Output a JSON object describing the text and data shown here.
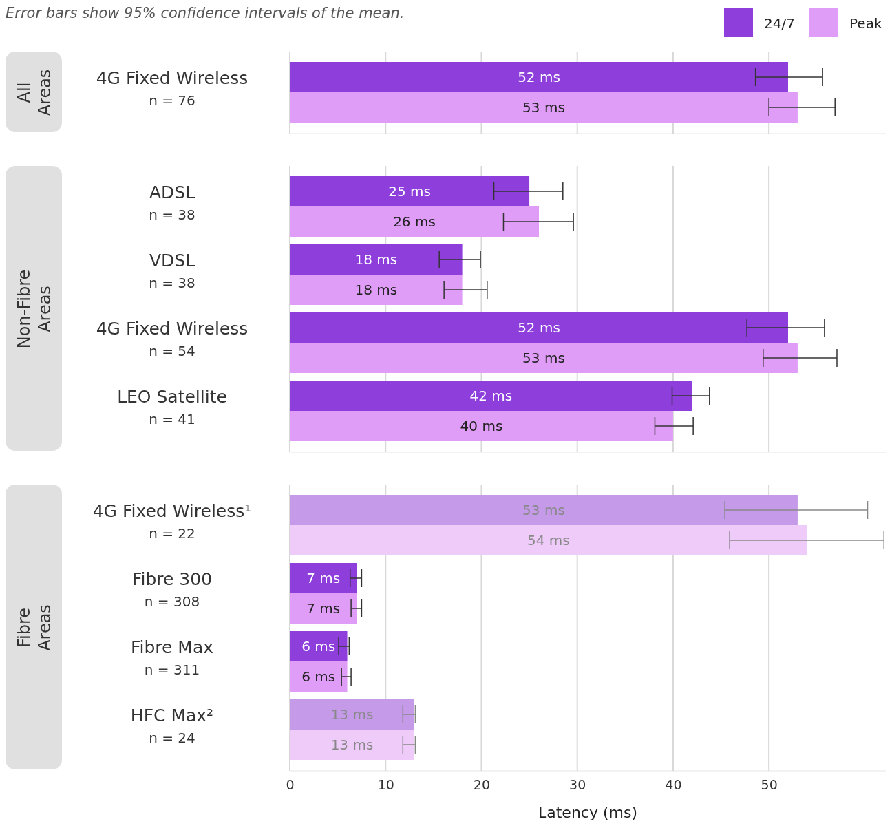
{
  "chart_data": [
    {
      "type": "bar",
      "orientation": "horizontal",
      "title": "Error bars show 95% confidence intervals of the mean.",
      "ylabel": "All Areas",
      "categories": [
        "4G Fixed Wireless\nn = 76"
      ],
      "xlim": [
        0,
        62.2
      ],
      "xticks": [
        0,
        10,
        20,
        30,
        40,
        50
      ],
      "grid": "x",
      "legend": "top right",
      "tick_labels": "y",
      "series": [
        {
          "name": "24/7",
          "color": "#8e3fdb",
          "values": [
            52
          ],
          "value_labels": [
            "52 ms"
          ],
          "errors": [
            [
              48.6,
              55.6
            ]
          ]
        },
        {
          "name": "Peak",
          "color": "#e09df7",
          "values": [
            53
          ],
          "value_labels": [
            "53 ms"
          ],
          "errors": [
            [
              50.0,
              56.9
            ]
          ]
        }
      ]
    },
    {
      "type": "bar",
      "orientation": "horizontal",
      "ylabel": "Non-Fibre Areas",
      "categories": [
        "ADSL\nn = 38",
        "VDSL\nn = 38",
        "4G Fixed Wireless\nn = 54",
        "LEO Satellite\nn = 41"
      ],
      "xlim": [
        0,
        62.2
      ],
      "xticks": [
        0,
        10,
        20,
        30,
        40,
        50
      ],
      "grid": "x",
      "tick_labels": "y",
      "series": [
        {
          "color": "#8e3fdb",
          "values": [
            25,
            18,
            52,
            42
          ],
          "value_labels": [
            "25 ms",
            "18 ms",
            "52 ms",
            "42 ms"
          ],
          "errors": [
            [
              21.3,
              28.5
            ],
            [
              15.6,
              19.9
            ],
            [
              47.7,
              55.8
            ],
            [
              39.9,
              43.8
            ]
          ]
        },
        {
          "color": "#e09df7",
          "values": [
            26,
            18,
            53,
            40
          ],
          "value_labels": [
            "26 ms",
            "18 ms",
            "53 ms",
            "40 ms"
          ],
          "errors": [
            [
              22.3,
              29.6
            ],
            [
              16.1,
              20.6
            ],
            [
              49.4,
              57.1
            ],
            [
              38.1,
              42.1
            ]
          ]
        }
      ]
    },
    {
      "type": "bar",
      "orientation": "horizontal",
      "ylabel": "Fibre Areas",
      "xlabel": "Latency (ms)",
      "categories": [
        "4G Fixed Wireless¹\nn = 22",
        "Fibre 300\nn = 308",
        "Fibre Max\nn = 311",
        "HFC Max²\nn = 24"
      ],
      "xlim": [
        0,
        62.2
      ],
      "xticks": [
        0,
        10,
        20,
        30,
        40,
        50
      ],
      "grid": "x",
      "series": [
        {
          "color": "#8e3fdb",
          "colors": [
            "#c59ae8",
            "#8e3fdb",
            "#8e3fdb",
            "#c59ae8"
          ],
          "values": [
            53,
            7,
            6,
            13
          ],
          "value_labels": [
            "53 ms",
            "7 ms",
            "6 ms",
            "13 ms"
          ],
          "errors": [
            [
              45.4,
              60.3
            ],
            [
              6.3,
              7.5
            ],
            [
              5.1,
              6.2
            ],
            [
              11.8,
              13.1
            ]
          ]
        },
        {
          "color": "#e09df7",
          "colors": [
            "#efcbfa",
            "#e09df7",
            "#e09df7",
            "#efcbfa"
          ],
          "values": [
            54,
            7,
            6,
            13
          ],
          "value_labels": [
            "54 ms",
            "7 ms",
            "6 ms",
            "13 ms"
          ],
          "errors": [
            [
              45.9,
              62.0
            ],
            [
              6.4,
              7.5
            ],
            [
              5.4,
              6.4
            ],
            [
              11.8,
              13.1
            ]
          ]
        }
      ]
    }
  ]
}
